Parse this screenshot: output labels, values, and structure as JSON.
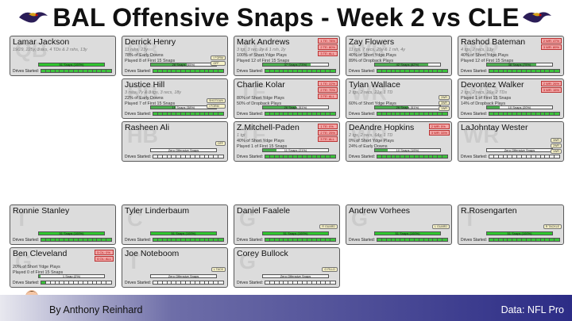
{
  "header": {
    "title": "BAL Offensive Snaps - Week 2 vs CLE",
    "logo_icon": "ravens-logo-icon"
  },
  "labels": {
    "drives_started": "Drives Started:"
  },
  "colors": {
    "card_bg": "#dcdcdc",
    "full_snap_bar": "#2fc52f",
    "partial_snap_bar": "#4caf50",
    "tag_red": "#f2a7a7",
    "footer_dark": "#2c2c86"
  },
  "players": [
    {
      "name": "Lamar Jackson",
      "pos": "QB",
      "lines": [
        [
          "19/29, 225y, 3 sks, 4 TDs & 2 rshs, 13y",
          "stat"
        ],
        [
          "",
          ""
        ],
        [
          "",
          ""
        ]
      ],
      "bar_label": "51 Snaps (100%)",
      "pct": 100,
      "tags": [],
      "side": [],
      "drives": 15
    },
    {
      "name": "Derrick Henry",
      "pos": "RB",
      "lines": [
        [
          "11 rshs, 23y",
          "stat"
        ],
        [
          "78% of Early Downs",
          ""
        ],
        [
          "Played 8 of First 15 Snaps",
          ""
        ]
      ],
      "bar_label": "28 Snaps (55%)",
      "pct": 55,
      "tags": [],
      "side": [
        "I FORM",
        "OFF"
      ],
      "drives": 15
    },
    {
      "name": "Mark Andrews",
      "pos": "TE",
      "lines": [
        [
          "3 tgt, 3 rec, 2y & 1 rsh, 2y",
          "stat"
        ],
        [
          "100% of Short Ydge Plays",
          ""
        ],
        [
          "Played 12 of First 15 Snaps",
          ""
        ]
      ],
      "bar_label": "37 Snaps (73%)",
      "pct": 73,
      "tags": [
        "1 TE: 78%",
        "2 TE: 80%",
        "3 TE: ALL"
      ],
      "side": [],
      "drives": 15
    },
    {
      "name": "Zay Flowers",
      "pos": "WR",
      "lines": [
        [
          "11 tgs, 7 recs, 25y & 1 rsh, 4y",
          "stat"
        ],
        [
          "40% of Short Ydge Plays",
          ""
        ],
        [
          "89% of Dropback Plays",
          ""
        ]
      ],
      "bar_label": "42 Snaps (82%)",
      "pct": 82,
      "tags": [],
      "side": [],
      "drives": 15
    },
    {
      "name": "Rashod Bateman",
      "pos": "WR",
      "lines": [
        [
          "4 tgs, 2 recs, 13y",
          "stat"
        ],
        [
          "40% of Short Ydge Plays",
          ""
        ],
        [
          "Played 12 of First 15 Snaps",
          ""
        ]
      ],
      "bar_label": "38 Snaps (75%)",
      "pct": 75,
      "tags": [
        "2 WR: 47%",
        "3 WR: 89%"
      ],
      "side": [],
      "drives": 15
    },
    {
      "name": "Justice Hill",
      "pos": "RB",
      "lines": [
        [
          "3 rshs, 7y & 3 tgs, 3 recs, 18y",
          "stat"
        ],
        [
          "22% of Early Downs",
          ""
        ],
        [
          "Played 7 of First 15 Snaps",
          ""
        ]
      ],
      "bar_label": "19 Snaps (38%)",
      "pct": 38,
      "tags": [],
      "side": [
        "SHOTGUN",
        "I FORM"
      ],
      "drives": 15
    },
    {
      "name": "Charlie Kolar",
      "pos": "TE",
      "lines": [
        [
          "",
          ""
        ],
        [
          "80% of Short Ydge Plays",
          ""
        ],
        [
          "50% of Dropback Plays",
          ""
        ]
      ],
      "bar_label": "26 Snaps (51%)",
      "pct": 51,
      "tags": [
        "1 TE: 22%",
        "2 TE: 70%",
        "3 TE: ALL"
      ],
      "side": [],
      "drives": 15
    },
    {
      "name": "Tylan Wallace",
      "pos": "WR",
      "lines": [
        [
          "2 tgs, 2 recs, 21y, 1 TD",
          "stat"
        ],
        [
          "",
          ""
        ],
        [
          "60% of Short Ydge Plays",
          ""
        ]
      ],
      "bar_label": "26 Snaps (51%)",
      "pct": 51,
      "tags": [],
      "side": [
        "2WR",
        "3WR",
        "1WR"
      ],
      "drives": 15
    },
    {
      "name": "Devontez Walker",
      "pos": "WR",
      "lines": [
        [
          "2 tgs, 2 recs, 26y, 2 TDs",
          "stat"
        ],
        [
          "Played 1 of First 15 Snaps",
          ""
        ],
        [
          "14% of Dropback Plays",
          ""
        ]
      ],
      "bar_label": "10 Snaps (20%)",
      "pct": 20,
      "tags": [
        "2 WR: 26%",
        "3 WR: 15%"
      ],
      "side": [],
      "drives": 15
    },
    {
      "name": "Rasheen Ali",
      "pos": "HB",
      "lines": [
        [
          "",
          ""
        ],
        [
          "",
          ""
        ],
        [
          "",
          ""
        ]
      ],
      "bar_label": "Zero Offensive Snaps",
      "pct": 0,
      "tags": [],
      "side": [
        "OFF"
      ],
      "drives": 0
    },
    {
      "name": "Z.Mitchell-Paden",
      "pos": "TE",
      "lines": [
        [
          "1 tgt",
          "stat"
        ],
        [
          "40% of Short Ydge Plays",
          ""
        ],
        [
          "Played 1 of First 15 Snaps",
          ""
        ]
      ],
      "bar_label": "11 Snaps (21%)",
      "pct": 21,
      "tags": [
        "1 TE: 0%",
        "2 TE: 25%",
        "3 TE: ALL"
      ],
      "side": [],
      "drives": 15
    },
    {
      "name": "DeAndre Hopkins",
      "pos": "WR",
      "lines": [
        [
          "2 tgs, 2 recs, 64y, 1 TD",
          "stat"
        ],
        [
          "0% of Short Ydge Plays",
          ""
        ],
        [
          "24% of Early Downs",
          ""
        ]
      ],
      "bar_label": "10 Snaps (19%)",
      "pct": 19,
      "tags": [
        "2 WR: 5%",
        "3 WR: 33%"
      ],
      "side": [],
      "drives": 15
    },
    {
      "name": "LaJohntay Wester",
      "pos": "WR",
      "lines": [
        [
          "",
          ""
        ],
        [
          "",
          ""
        ],
        [
          "",
          ""
        ]
      ],
      "bar_label": "Zero Offensive Snaps",
      "pct": 0,
      "tags": [],
      "side": [
        "3WR",
        "2WR",
        "1WR"
      ],
      "drives": 0
    },
    {
      "name": "Ronnie Stanley",
      "pos": "T",
      "lines": [
        [
          "",
          ""
        ],
        [
          "",
          ""
        ],
        [
          "",
          ""
        ]
      ],
      "bar_label": "51 Snaps (100%)",
      "pct": 100,
      "tags": [],
      "side": [],
      "drives": 15
    },
    {
      "name": "Tyler Linderbaum",
      "pos": "C",
      "lines": [
        [
          "",
          ""
        ],
        [
          "",
          ""
        ],
        [
          "",
          ""
        ]
      ],
      "bar_label": "51 Snaps (100%)",
      "pct": 100,
      "tags": [],
      "side": [],
      "drives": 15
    },
    {
      "name": "Daniel Faalele",
      "pos": "G",
      "lines": [
        [
          "",
          ""
        ],
        [
          "",
          ""
        ],
        [
          "",
          ""
        ]
      ],
      "bar_label": "51 Snaps (100%)",
      "pct": 100,
      "tags": [],
      "side": [
        "R GUARD"
      ],
      "drives": 15
    },
    {
      "name": "Andrew Vorhees",
      "pos": "G",
      "lines": [
        [
          "",
          ""
        ],
        [
          "",
          ""
        ],
        [
          "",
          ""
        ]
      ],
      "bar_label": "51 Snaps (100%)",
      "pct": 100,
      "tags": [],
      "side": [
        "L GUARD"
      ],
      "drives": 15
    },
    {
      "name": "R.Rosengarten",
      "pos": "T",
      "lines": [
        [
          "",
          ""
        ],
        [
          "",
          ""
        ],
        [
          "",
          ""
        ]
      ],
      "bar_label": "51 Snaps (100%)",
      "pct": 100,
      "tags": [],
      "side": [
        "R TACKLE"
      ],
      "drives": 15
    },
    {
      "name": "Ben Cleveland",
      "pos": "G",
      "lines": [
        [
          "",
          ""
        ],
        [
          "20% of Short Ydge Plays",
          ""
        ],
        [
          "Played 0 of First 15 Snaps",
          ""
        ]
      ],
      "bar_label": "1 Snap (2%)",
      "pct": 2,
      "tags": [
        "5 OL: 0%",
        "6 OL: ALL"
      ],
      "side": [],
      "drives": 1
    },
    {
      "name": "Joe Noteboom",
      "pos": "T",
      "lines": [
        [
          "",
          ""
        ],
        [
          "",
          ""
        ],
        [
          "",
          ""
        ]
      ],
      "bar_label": "Zero Offensive Snaps",
      "pct": 0,
      "tags": [],
      "side": [
        "L TACK"
      ],
      "drives": 0
    },
    {
      "name": "Corey Bullock",
      "pos": "G",
      "lines": [
        [
          "",
          ""
        ],
        [
          "",
          ""
        ],
        [
          "",
          ""
        ]
      ],
      "bar_label": "Zero Offensive Snaps",
      "pct": 0,
      "tags": [],
      "side": [
        "G FILLD"
      ],
      "drives": 0
    }
  ],
  "footer": {
    "author": "By Anthony Reinhard",
    "source": "Data: NFL Pro",
    "avatar_icon": "cartoon-author-avatar-icon"
  }
}
